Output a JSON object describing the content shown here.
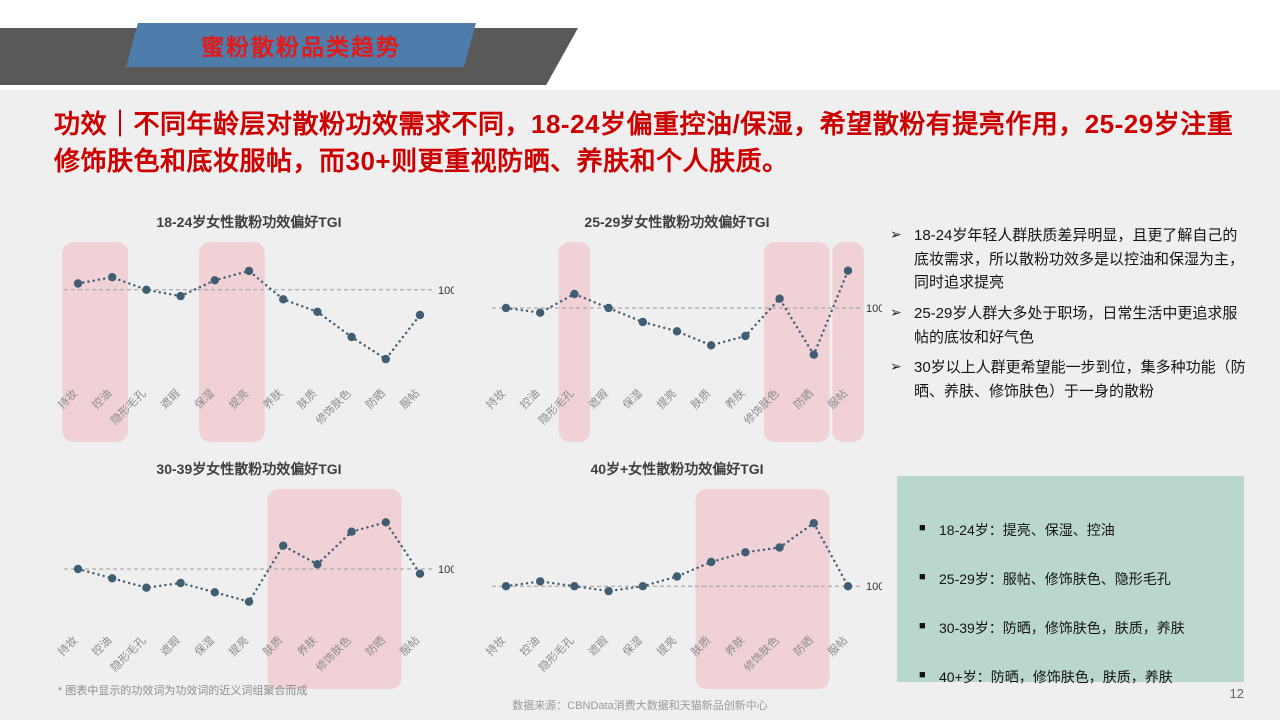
{
  "page": {
    "banner_title": "蜜粉散粉品类趋势",
    "headline": "功效｜不同年龄层对散粉功效需求不同，18-24岁偏重控油/保湿，希望散粉有提亮作用，25-29岁注重修饰肤色和底妆服帖，而30+则更重视防晒、养肤和个人肤质。",
    "footnote": "* 图表中显示的功效词为功效词的近义词组聚合而成",
    "source": "数据来源：CBNData消费大数据和天猫新品创新中心",
    "page_number": "12"
  },
  "insights": [
    "18-24岁年轻人群肤质差异明显，且更了解自己的底妆需求，所以散粉功效多是以控油和保湿为主，同时追求提亮",
    "25-29岁人群大多处于职场，日常生活中更追求服帖的底妆和好气色",
    "30岁以上人群更希望能一步到位，集多种功能（防晒、养肤、修饰肤色）于一身的散粉"
  ],
  "summary_box": {
    "items": [
      "18-24岁：提亮、保湿、控油",
      "25-29岁：服帖、修饰肤色、隐形毛孔",
      "30-39岁：防晒，修饰肤色，肤质，养肤",
      "40+岁：防晒，修饰肤色，肤质，养肤"
    ]
  },
  "colors": {
    "background": "#efefef",
    "banner_blue": "#4e7dac",
    "banner_gray": "#595959",
    "title_red": "#cc0000",
    "line": "#3f5d73",
    "highlight": "#f0b9c1",
    "ref_line": "#9a9a9a",
    "summary_bg": "#b9d7ca"
  },
  "chart_data": [
    {
      "type": "line",
      "title": "18-24岁女性散粉功效偏好TGI",
      "categories": [
        "持妆",
        "控油",
        "隐形毛孔",
        "遮瑕",
        "保湿",
        "提亮",
        "养肤",
        "肤质",
        "修饰肤色",
        "防晒",
        "服帖"
      ],
      "values": [
        102,
        104,
        100,
        98,
        103,
        106,
        97,
        93,
        85,
        78,
        92
      ],
      "ref_line": {
        "value": 100,
        "label": "100"
      },
      "ylim": [
        72,
        112
      ],
      "grid": false,
      "legend": "none",
      "highlights": [
        [
          0,
          1
        ],
        [
          4,
          5
        ]
      ]
    },
    {
      "type": "line",
      "title": "25-29岁女性散粉功效偏好TGI",
      "categories": [
        "持妆",
        "控油",
        "隐形毛孔",
        "遮瑕",
        "保湿",
        "提亮",
        "肤质",
        "养肤",
        "修饰肤色",
        "防晒",
        "服帖"
      ],
      "values": [
        100,
        99,
        103,
        100,
        97,
        95,
        92,
        94,
        102,
        90,
        108
      ],
      "ref_line": {
        "value": 100,
        "label": "100"
      },
      "ylim": [
        85,
        112
      ],
      "grid": false,
      "legend": "none",
      "highlights": [
        [
          2,
          2
        ],
        [
          8,
          9
        ],
        [
          10,
          10
        ]
      ]
    },
    {
      "type": "line",
      "title": "30-39岁女性散粉功效偏好TGI",
      "categories": [
        "持妆",
        "控油",
        "隐形毛孔",
        "遮瑕",
        "保湿",
        "提亮",
        "肤质",
        "养肤",
        "修饰肤色",
        "防晒",
        "服帖"
      ],
      "values": [
        100,
        98,
        96,
        97,
        95,
        93,
        105,
        101,
        108,
        110,
        99
      ],
      "ref_line": {
        "value": 100,
        "label": "100"
      },
      "ylim": [
        88,
        115
      ],
      "grid": false,
      "legend": "none",
      "highlights": [
        [
          6,
          9
        ]
      ]
    },
    {
      "type": "line",
      "title": "40岁+女性散粉功效偏好TGI",
      "categories": [
        "持妆",
        "控油",
        "隐形毛孔",
        "遮瑕",
        "保湿",
        "提亮",
        "肤质",
        "养肤",
        "修饰肤色",
        "防晒",
        "服帖"
      ],
      "values": [
        100,
        101,
        100,
        99,
        100,
        102,
        105,
        107,
        108,
        113,
        100
      ],
      "ref_line": {
        "value": 100,
        "label": "100"
      },
      "ylim": [
        92,
        118
      ],
      "grid": false,
      "legend": "none",
      "highlights": [
        [
          6,
          9
        ]
      ]
    }
  ]
}
